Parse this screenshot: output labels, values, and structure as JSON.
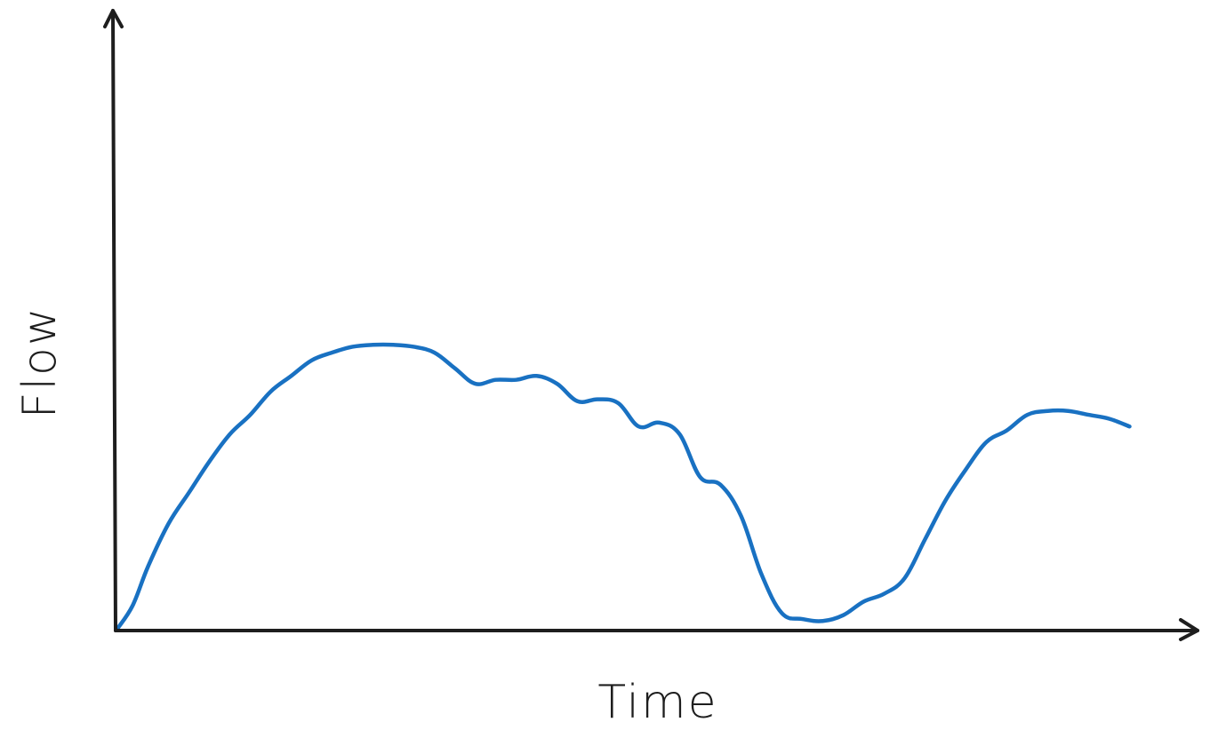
{
  "chart_data": {
    "type": "line",
    "title": "",
    "xlabel": "Time",
    "ylabel": "Flow",
    "grid": false,
    "xlim": [
      0,
      100
    ],
    "ylim": [
      0,
      100
    ],
    "series": [
      {
        "color": "#1971c2",
        "x": [
          0,
          1.5,
          3,
          5,
          7,
          9,
          11,
          13,
          15,
          17,
          19,
          21,
          23,
          25,
          27,
          29,
          31,
          33,
          35,
          37,
          39,
          41,
          43,
          45,
          47,
          49,
          51,
          53,
          55,
          57,
          59,
          61,
          63,
          65,
          67,
          69,
          71,
          73,
          75,
          77,
          79,
          81,
          83,
          85,
          87,
          89,
          91,
          93,
          95,
          97,
          99
        ],
        "y": [
          0,
          6,
          16,
          27,
          35,
          43,
          50,
          55,
          61,
          65,
          69,
          71,
          72.5,
          73,
          73,
          72.5,
          71,
          67,
          63,
          64,
          64,
          65,
          63,
          58.5,
          59,
          58,
          52,
          53,
          50,
          39,
          37,
          29,
          14,
          4,
          2.5,
          2,
          3.5,
          7,
          9,
          13,
          23,
          33,
          41,
          48,
          51,
          55,
          56,
          56,
          55,
          54,
          52
        ]
      }
    ]
  }
}
